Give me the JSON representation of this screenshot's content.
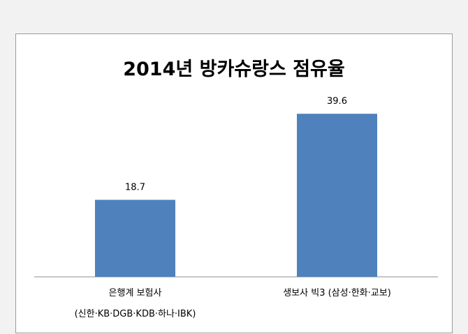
{
  "chart_data": {
    "type": "bar",
    "title": "2014년 방카슈랑스 점유율",
    "categories": [
      [
        "은행계 보험사",
        "(신한·KB·DGB·KDB·하나·IBK)"
      ],
      [
        "생보사 빅3 (삼성·한화·교보)"
      ]
    ],
    "values": [
      18.7,
      39.6
    ],
    "value_labels": [
      "18.7",
      "39.6"
    ],
    "bar_color": "#4f81bd",
    "ylim": [
      0,
      42
    ],
    "grid": false,
    "legend": "none"
  }
}
